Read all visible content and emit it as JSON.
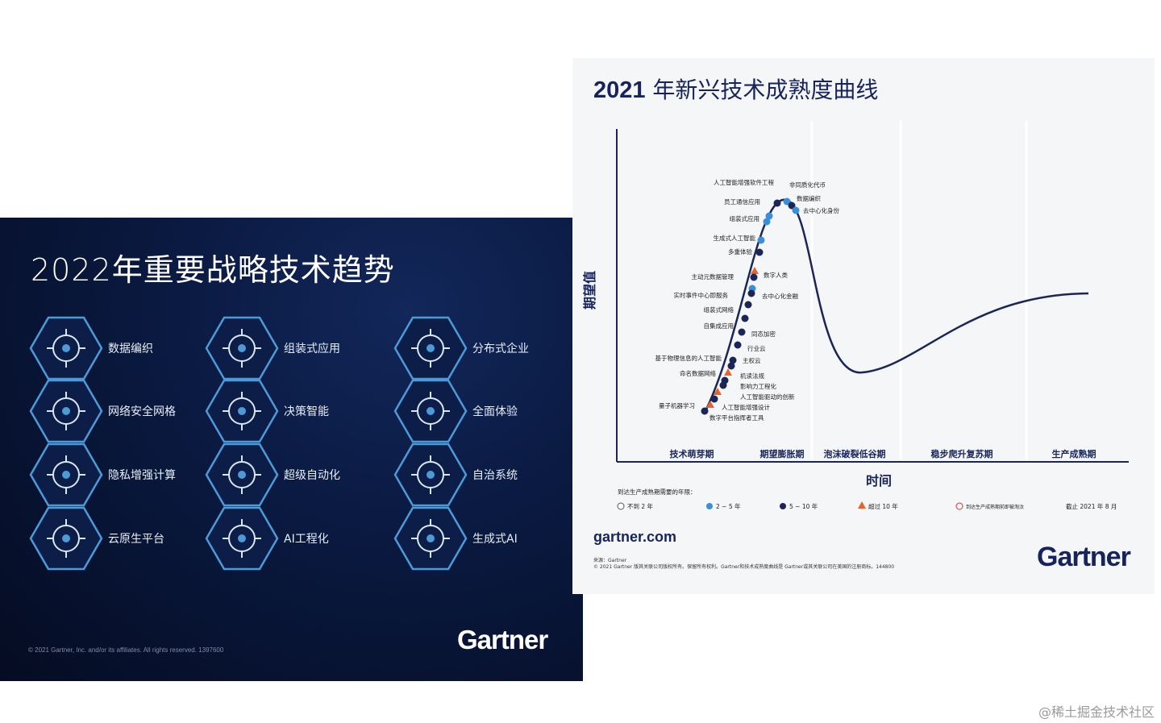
{
  "left_slide": {
    "title": "2022年重要战略技术趋势",
    "trends": [
      {
        "label": "数据编织",
        "icon": "data-fabric-icon"
      },
      {
        "label": "组装式应用",
        "icon": "cube-icon"
      },
      {
        "label": "分布式企业",
        "icon": "distributed-enterprise-icon"
      },
      {
        "label": "网络安全网格",
        "icon": "security-mesh-icon"
      },
      {
        "label": "决策智能",
        "icon": "decision-tree-icon"
      },
      {
        "label": "全面体验",
        "icon": "user-circle-icon"
      },
      {
        "label": "隐私增强计算",
        "icon": "shield-lock-icon"
      },
      {
        "label": "超级自动化",
        "icon": "gear-code-icon"
      },
      {
        "label": "自治系统",
        "icon": "target-icon"
      },
      {
        "label": "云原生平台",
        "icon": "cloud-network-icon"
      },
      {
        "label": "AI工程化",
        "icon": "ai-head-icon"
      },
      {
        "label": "生成式AI",
        "icon": "funnel-icon"
      }
    ],
    "copyright": "© 2021 Gartner, Inc. and/or its affiliates. All rights reserved. 1397600",
    "logo": "Gartner"
  },
  "right_slide": {
    "title_year": "2021",
    "title_text": " 年新兴技术成熟度曲线",
    "y_axis_label": "期望值",
    "x_axis_label": "时间",
    "phases": [
      "技术萌芽期",
      "期望膨胀期",
      "泡沫破裂低谷期",
      "稳步爬升复苏期",
      "生产成熟期"
    ],
    "technologies": [
      {
        "name": "人工智能增强软件工程",
        "years": "5-10"
      },
      {
        "name": "非同质化代币",
        "years": "2-5"
      },
      {
        "name": "数据编织",
        "years": "5-10"
      },
      {
        "name": "去中心化身份",
        "years": "2-5"
      },
      {
        "name": "员工通信应用",
        "years": "2-5"
      },
      {
        "name": "组装式应用",
        "years": "2-5"
      },
      {
        "name": "生成式人工智能",
        "years": "2-5"
      },
      {
        "name": "多重体验",
        "years": "5-10"
      },
      {
        "name": "数字人类",
        "years": ">10"
      },
      {
        "name": "主动元数据管理",
        "years": "5-10"
      },
      {
        "name": "实时事件中心即服务",
        "years": "2-5"
      },
      {
        "name": "去中心化金融",
        "years": "5-10"
      },
      {
        "name": "组装式网络",
        "years": "5-10"
      },
      {
        "name": "自集成应用",
        "years": "5-10"
      },
      {
        "name": "同态加密",
        "years": "5-10"
      },
      {
        "name": "行业云",
        "years": "5-10"
      },
      {
        "name": "基于物理信息的人工智能",
        "years": "5-10"
      },
      {
        "name": "主权云",
        "years": "5-10"
      },
      {
        "name": "命名数据网络",
        "years": ">10"
      },
      {
        "name": "机读法规",
        "years": "5-10"
      },
      {
        "name": "影响力工程化",
        "years": "5-10"
      },
      {
        "name": "人工智能驱动的创新",
        "years": ">10"
      },
      {
        "name": "人工智能增强设计",
        "years": "5-10"
      },
      {
        "name": "量子机器学习",
        "years": ">10"
      },
      {
        "name": "数字平台指挥者工具",
        "years": "5-10"
      }
    ],
    "legend": {
      "title": "到达生产成熟期需要的年限：",
      "items": [
        "不到 2 年",
        "2 ~ 5 年",
        "5 ~ 10 年",
        "超过 10 年",
        "到达生产成熟期前即被淘汰"
      ],
      "as_of": "截止 2021 年 8 月"
    },
    "colors": {
      "light": "#3a8fd8",
      "dark": "#1b2656",
      "triangle": "#e8622c",
      "curve": "#1b2656"
    },
    "site": "gartner.com",
    "source": "来源：Gartner",
    "copyright": "© 2021 Gartner 版其关联公司版权所有。保留所有权利。Gartner和技术成熟度曲线是 Gartner或其关联公司在美国的注册商标。144800",
    "logo": "Gartner"
  },
  "watermark": "@稀土掘金技术社区"
}
